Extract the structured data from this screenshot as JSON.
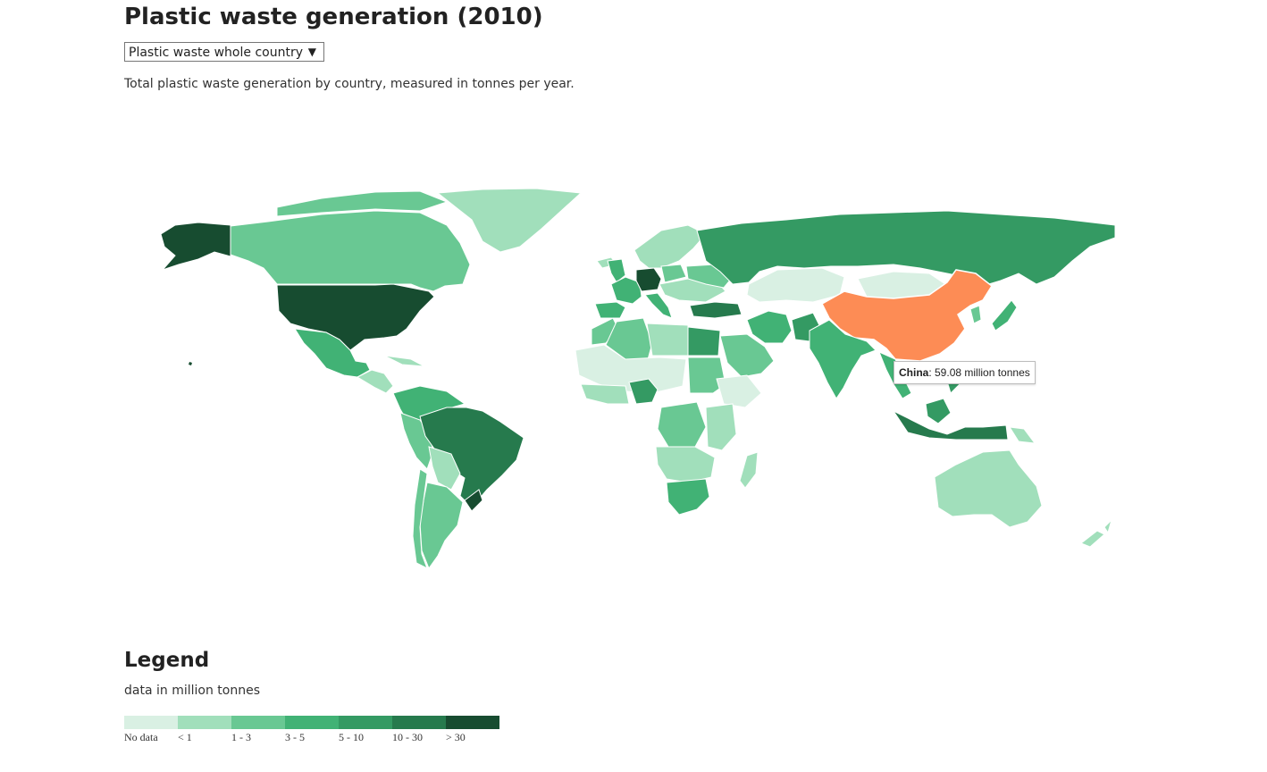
{
  "title": "Plastic waste generation (2010)",
  "selector": {
    "selected": "Plastic waste whole country",
    "arrow": "▼"
  },
  "subtitle": "Total plastic waste generation by country, measured in tonnes per year.",
  "tooltip": {
    "country": "China",
    "value_text": ": 59.08 million tonnes"
  },
  "legend": {
    "title": "Legend",
    "subtitle": "data in million tonnes",
    "bins": [
      {
        "label": "No data",
        "color": "#d9f0e3"
      },
      {
        "label": "< 1",
        "color": "#a1dfbb"
      },
      {
        "label": "1 - 3",
        "color": "#69c893"
      },
      {
        "label": "3 - 5",
        "color": "#41b275"
      },
      {
        "label": "5 - 10",
        "color": "#349a63"
      },
      {
        "label": "10 - 30",
        "color": "#267a4d"
      },
      {
        "label": "> 30",
        "color": "#174c30"
      }
    ]
  },
  "colors": {
    "highlight": "#fd8c55",
    "border": "#ffffff"
  }
}
